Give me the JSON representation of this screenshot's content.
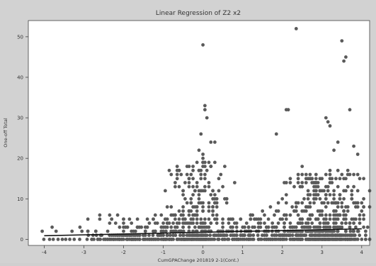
{
  "chart_data": {
    "type": "scatter",
    "title": "Linear Regression of Z2 x2",
    "xlabel": "CumGPAChange 201819 2-1(Cont.)",
    "ylabel": "One-off Total",
    "xlim": [
      -4.4,
      4.2
    ],
    "ylim": [
      -1.5,
      54
    ],
    "xticks": [
      -4,
      -3,
      -2,
      -1,
      0,
      1,
      2,
      3,
      4
    ],
    "yticks": [
      0,
      10,
      20,
      30,
      40,
      50
    ],
    "grid": false,
    "colors": {
      "points": "#5a5a5a",
      "line": "#111111",
      "plot_bg": "#ffffff",
      "figure_bg": "#d2d2d2"
    },
    "regression_line": {
      "x": [
        -4,
        4
      ],
      "y": [
        0.9,
        2.6
      ]
    },
    "points": [
      {
        "x": 0.0,
        "y": 48
      },
      {
        "x": 2.35,
        "y": 52
      },
      {
        "x": 3.5,
        "y": 49
      },
      {
        "x": 3.6,
        "y": 45
      },
      {
        "x": 3.55,
        "y": 44
      },
      {
        "x": 3.7,
        "y": 32
      },
      {
        "x": 0.05,
        "y": 33
      },
      {
        "x": 0.05,
        "y": 32
      },
      {
        "x": 0.1,
        "y": 30
      },
      {
        "x": 2.1,
        "y": 32
      },
      {
        "x": 2.15,
        "y": 32
      },
      {
        "x": 1.85,
        "y": 26
      },
      {
        "x": 3.1,
        "y": 30
      },
      {
        "x": 3.15,
        "y": 29
      },
      {
        "x": 3.2,
        "y": 28
      },
      {
        "x": -0.05,
        "y": 26
      },
      {
        "x": 0.2,
        "y": 24
      },
      {
        "x": 0.3,
        "y": 24
      },
      {
        "x": -0.1,
        "y": 22
      },
      {
        "x": 0.0,
        "y": 21
      },
      {
        "x": 3.4,
        "y": 24
      },
      {
        "x": 3.3,
        "y": 22
      },
      {
        "x": 3.8,
        "y": 23
      },
      {
        "x": 3.9,
        "y": 21
      },
      {
        "x": -0.35,
        "y": 13
      },
      {
        "x": 0.8,
        "y": 14
      },
      {
        "x": 2.2,
        "y": 15
      },
      {
        "x": 2.5,
        "y": 18
      },
      {
        "x": 2.4,
        "y": 14
      },
      {
        "x": 0.4,
        "y": 12
      },
      {
        "x": 0.35,
        "y": 10
      },
      {
        "x": 0.6,
        "y": 10
      },
      {
        "x": 1.5,
        "y": 7
      },
      {
        "x": 1.2,
        "y": 6
      },
      {
        "x": -0.8,
        "y": 8
      },
      {
        "x": -0.9,
        "y": 8
      },
      {
        "x": -0.7,
        "y": 6
      },
      {
        "x": -1.2,
        "y": 6
      },
      {
        "x": -2.0,
        "y": 5
      },
      {
        "x": -3.8,
        "y": 3
      },
      {
        "x": -4.05,
        "y": 2
      },
      {
        "x": -3.7,
        "y": 2
      },
      {
        "x": -3.3,
        "y": 2
      },
      {
        "x": -3.1,
        "y": 3
      },
      {
        "x": -2.9,
        "y": 2
      }
    ],
    "cluster_density": [
      {
        "center": -0.1,
        "spread": 0.55,
        "count": 260,
        "ymax": 20
      },
      {
        "center": 3.1,
        "spread": 0.75,
        "count": 420,
        "ymax": 17
      },
      {
        "center": 2.2,
        "spread": 0.6,
        "count": 110,
        "ymax": 10
      },
      {
        "center": -1.5,
        "spread": 1.1,
        "count": 160,
        "ymax": 6
      },
      {
        "center": 1.2,
        "spread": 0.7,
        "count": 90,
        "ymax": 6
      }
    ]
  }
}
